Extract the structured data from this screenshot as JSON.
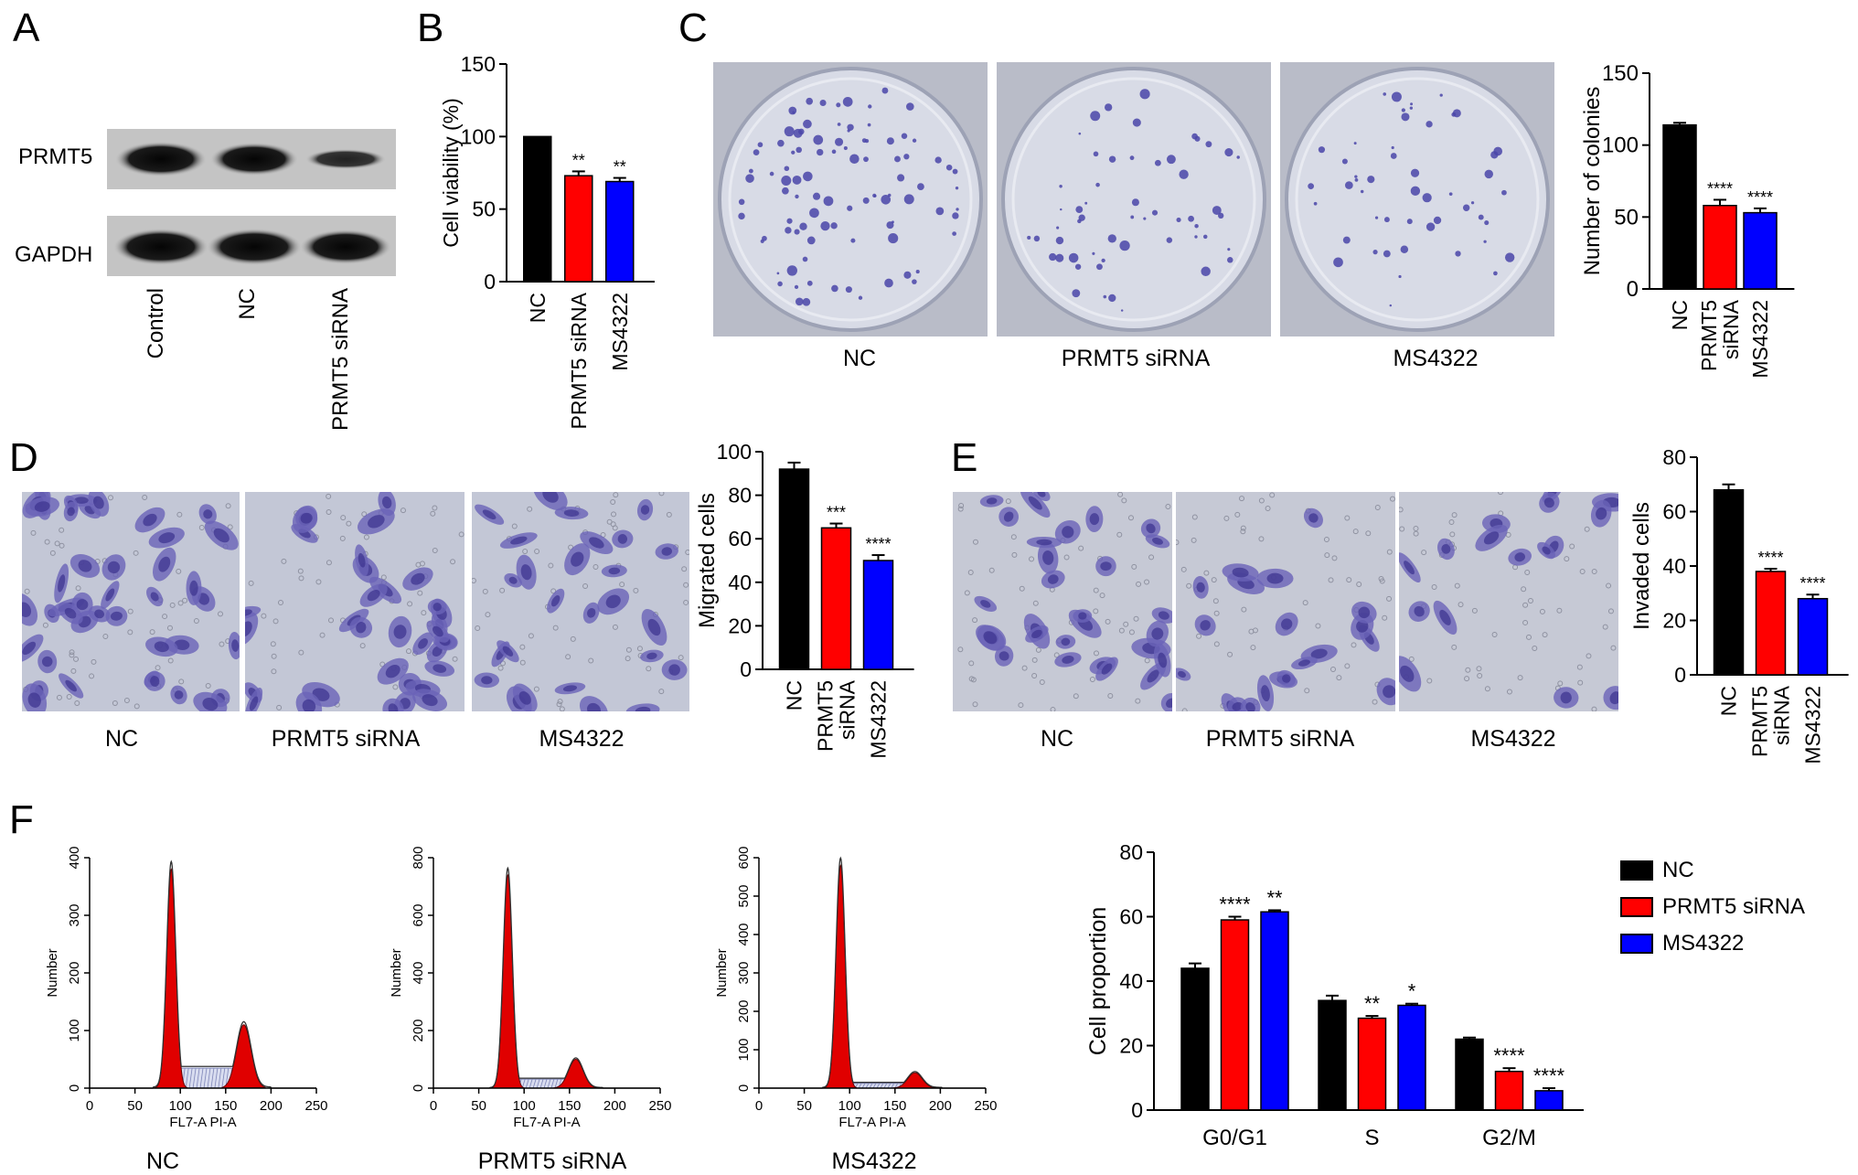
{
  "panels": {
    "A": "A",
    "B": "B",
    "C": "C",
    "D": "D",
    "E": "E",
    "F": "F"
  },
  "colors": {
    "nc": "#000000",
    "prmt5": "#ff0000",
    "ms4322": "#0000ff",
    "stain": "#4a45a8",
    "plate": "#cfd3df",
    "fcs_red": "#e00000"
  },
  "western": {
    "bands": [
      "PRMT5",
      "GAPDH"
    ],
    "lanes": [
      "Control",
      "NC",
      "PRMT5 siRNA"
    ]
  },
  "captions": {
    "c": [
      "NC",
      "PRMT5 siRNA",
      "MS4322"
    ],
    "d": [
      "NC",
      "PRMT5 siRNA",
      "MS4322"
    ],
    "e": [
      "NC",
      "PRMT5 siRNA",
      "MS4322"
    ],
    "f": [
      "NC",
      "PRMT5 siRNA",
      "MS4322"
    ]
  },
  "legend": {
    "items": [
      "NC",
      "PRMT5 siRNA",
      "MS4322"
    ]
  },
  "chart_data": [
    {
      "id": "B",
      "type": "bar",
      "ylabel": "Cell viability (%)",
      "ylim": [
        0,
        150
      ],
      "yticks": [
        0,
        50,
        100,
        150
      ],
      "categories": [
        "NC",
        "PRMT5 siRNA",
        "MS4322"
      ],
      "values": [
        100,
        73,
        69
      ],
      "errors": [
        0,
        3,
        2.5
      ],
      "sig": [
        "",
        "**",
        "**"
      ]
    },
    {
      "id": "C",
      "type": "bar",
      "ylabel": "Number of colonies",
      "ylim": [
        0,
        150
      ],
      "yticks": [
        0,
        50,
        100,
        150
      ],
      "categories": [
        "NC",
        "PRMT5 siRNA",
        "MS4322"
      ],
      "values": [
        114,
        58,
        53
      ],
      "errors": [
        1.5,
        4,
        3
      ],
      "sig": [
        "",
        "****",
        "****"
      ]
    },
    {
      "id": "D",
      "type": "bar",
      "ylabel": "Migrated cells",
      "ylim": [
        0,
        100
      ],
      "yticks": [
        0,
        20,
        40,
        60,
        80,
        100
      ],
      "categories": [
        "NC",
        "PRMT5 siRNA",
        "MS4322"
      ],
      "values": [
        92,
        65,
        50
      ],
      "errors": [
        3,
        2,
        2.5
      ],
      "sig": [
        "",
        "***",
        "****"
      ]
    },
    {
      "id": "E",
      "type": "bar",
      "ylabel": "Invaded cells",
      "ylim": [
        0,
        80
      ],
      "yticks": [
        0,
        20,
        40,
        60,
        80
      ],
      "categories": [
        "NC",
        "PRMT5 siRNA",
        "MS4322"
      ],
      "values": [
        68,
        38,
        28
      ],
      "errors": [
        2,
        1,
        1.5
      ],
      "sig": [
        "",
        "****",
        "****"
      ]
    },
    {
      "id": "F-bar",
      "type": "bar",
      "ylabel": "Cell proportion",
      "ylim": [
        0,
        80
      ],
      "yticks": [
        0,
        20,
        40,
        60,
        80
      ],
      "categories": [
        "G0/G1",
        "S",
        "G2/M"
      ],
      "series": [
        {
          "name": "NC",
          "values": [
            44,
            34,
            22
          ],
          "errors": [
            1.5,
            1.5,
            0.5
          ],
          "sig": [
            "",
            "",
            ""
          ]
        },
        {
          "name": "PRMT5 siRNA",
          "values": [
            59,
            28.5,
            12
          ],
          "errors": [
            1,
            0.7,
            1
          ],
          "sig": [
            "****",
            "**",
            "****"
          ]
        },
        {
          "name": "MS4322",
          "values": [
            61.5,
            32.5,
            6
          ],
          "errors": [
            0.5,
            0.5,
            0.8
          ],
          "sig": [
            "**",
            "*",
            "****"
          ]
        }
      ]
    },
    {
      "id": "F-NC",
      "type": "area",
      "xlabel": "FL7-A PI-A",
      "ylabel": "Number",
      "xlim": [
        0,
        250
      ],
      "ylim": [
        0,
        400
      ],
      "xticks": [
        0,
        50,
        100,
        150,
        200,
        250
      ],
      "yticks": [
        0,
        100,
        200,
        300,
        400
      ],
      "g1": [
        90,
        380
      ],
      "g2": [
        170,
        110
      ]
    },
    {
      "id": "F-siRNA",
      "type": "area",
      "xlabel": "FL7-A PI-A",
      "ylabel": "Number",
      "xlim": [
        0,
        250
      ],
      "ylim": [
        0,
        800
      ],
      "xticks": [
        0,
        50,
        100,
        150,
        200,
        250
      ],
      "yticks": [
        0,
        200,
        400,
        600,
        800
      ],
      "g1": [
        82,
        740
      ],
      "g2": [
        157,
        100
      ]
    },
    {
      "id": "F-MS",
      "type": "area",
      "xlabel": "FL7-A PI-A",
      "ylabel": "Number",
      "xlim": [
        0,
        250
      ],
      "ylim": [
        0,
        600
      ],
      "xticks": [
        0,
        50,
        100,
        150,
        200,
        250
      ],
      "yticks": [
        0,
        100,
        200,
        300,
        400,
        500,
        600
      ],
      "g1": [
        90,
        580
      ],
      "g2": [
        172,
        40
      ]
    }
  ]
}
